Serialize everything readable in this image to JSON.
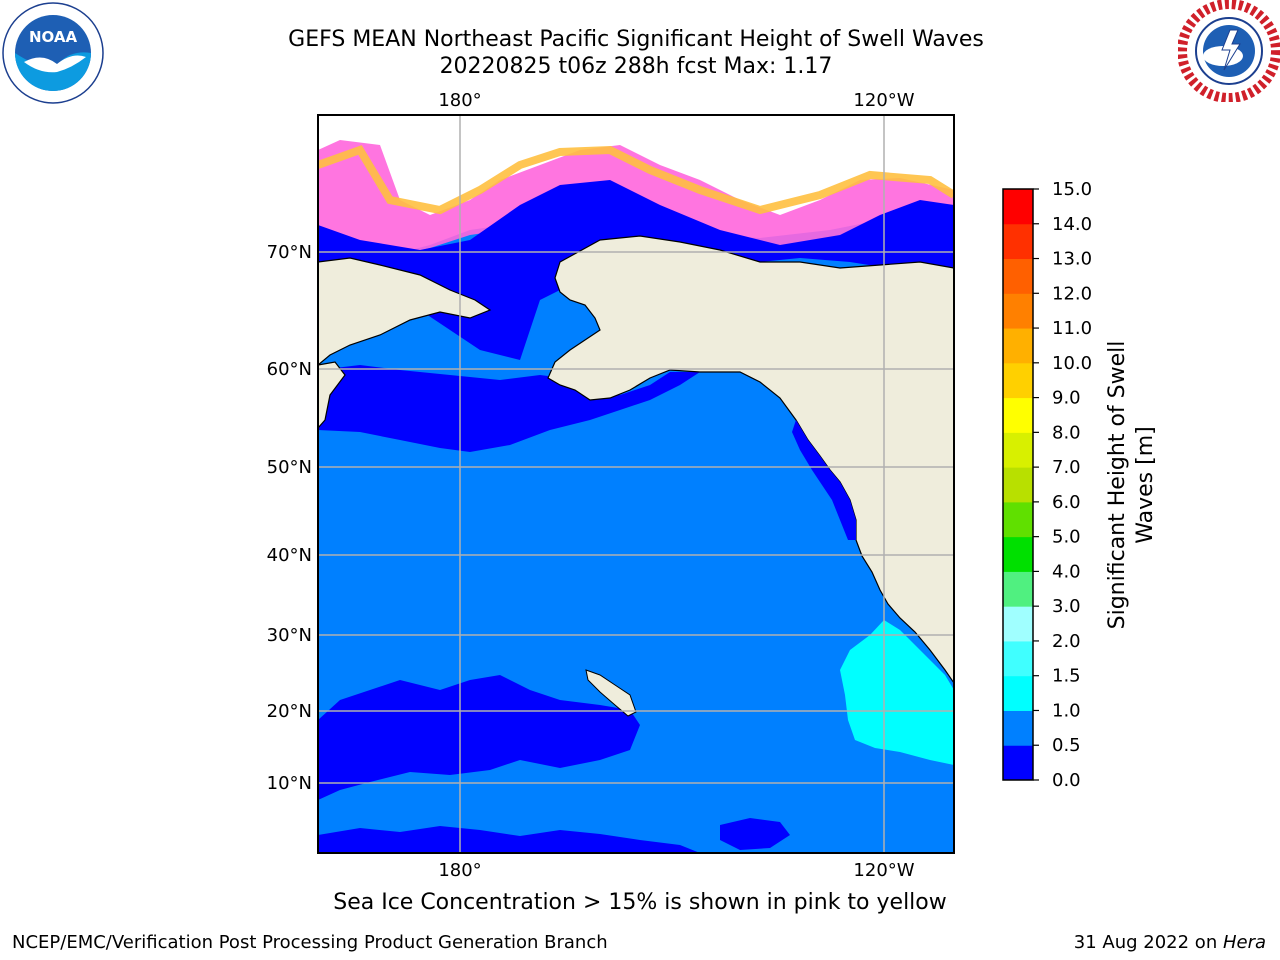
{
  "title": {
    "line1": "GEFS MEAN Northeast Pacific Significant Height of Swell Waves",
    "line2": "20220825 t06z 288h fcst   Max: 1.17"
  },
  "map": {
    "lon_labels_top": [
      "180°",
      "120°W"
    ],
    "lon_labels_bottom": [
      "180°",
      "120°W"
    ],
    "lat_labels": [
      "70°N",
      "60°N",
      "50°N",
      "40°N",
      "30°N",
      "20°N",
      "10°N"
    ],
    "colors": {
      "land": "#efeddc",
      "ocean_0_05": "#0000ff",
      "ocean_05_10": "#0080ff",
      "ocean_10_15": "#00ffff",
      "grid": "#b0b0b0"
    }
  },
  "colorbar": {
    "label_line1": "Significant Height of Swell",
    "label_line2": "Waves [m]",
    "ticks": [
      "0.0",
      "0.5",
      "1.0",
      "1.5",
      "2.0",
      "3.0",
      "4.0",
      "5.0",
      "6.0",
      "7.0",
      "8.0",
      "9.0",
      "10.0",
      "11.0",
      "12.0",
      "13.0",
      "14.0",
      "15.0"
    ],
    "colors": [
      "#0000ff",
      "#0080ff",
      "#00ffff",
      "#40ffff",
      "#a0ffff",
      "#50f080",
      "#00e000",
      "#60e000",
      "#b8e000",
      "#d8f000",
      "#ffff00",
      "#ffd000",
      "#ffb000",
      "#ff8000",
      "#ff6000",
      "#ff3000",
      "#ff0000"
    ]
  },
  "note": "Sea Ice Concentration > 15% is shown in pink to yellow",
  "footer": {
    "left": "NCEP/EMC/Verification Post Processing Product Generation Branch",
    "right_prefix": "31 Aug 2022 on ",
    "right_host": "Hera"
  },
  "logos": {
    "noaa_icon": "noaa-logo",
    "nws_icon": "nws-logo",
    "noaa_text": "NOAA"
  }
}
